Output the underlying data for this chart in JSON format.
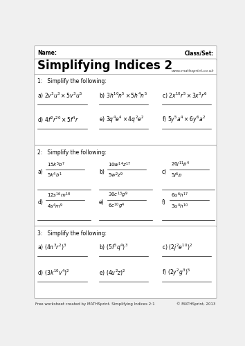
{
  "title": "Simplifying Indices 2",
  "website": "www.mathsprint.co.uk",
  "footer": "Free worksheet created by MATHSprint. Simplifying Indices 2:1",
  "footer_right": "© MATHSprint, 2013",
  "name_label": "Name:",
  "class_label": "Class/Set:",
  "section1_header": "1:   Simplify the following:",
  "section2_header": "2:   Simplify the following:",
  "section3_header": "3:   Simplify the following:",
  "bg_color": "#f0f0f0",
  "box_color": "#ffffff",
  "section1_row1": [
    "a) $2v^3u^3 \\times 5v^3u^5$",
    "b) $3h^{10}n^5 \\times 5h^4n^5$",
    "c) $2x^{10}r^5 \\times 3x^3r^6$"
  ],
  "section1_row2": [
    "d) $4f^2r^{20} \\times 5f^4r$",
    "e) $3q^4e^4 \\times 4q^2e^2$",
    "f) $5y^5a^4 \\times 6y^6a^2$"
  ],
  "section2_row1_labels": [
    "a)",
    "b)",
    "c)"
  ],
  "section2_row1_num": [
    "$15k^5b^7$",
    "$10w^{14}z^{17}$",
    "$20j^{11}p^4$"
  ],
  "section2_row1_den": [
    "$5k^4b^1$",
    "$5w^2z^9$",
    "$5j^6p$"
  ],
  "section2_row2_labels": [
    "d)",
    "e)",
    "f)"
  ],
  "section2_row2_num": [
    "$12s^{16}m^{18}$",
    "$30c^{13}g^9$",
    "$6u^6h^{17}$"
  ],
  "section2_row2_den": [
    "$4s^4m^9$",
    "$6c^{10}g^4$",
    "$3u^4h^{10}$"
  ],
  "section3_row1": [
    "a) $(4n^3r^2)^3$",
    "b) $(5f^5q^4)^3$",
    "c) $(2j^2e^{10})^2$"
  ],
  "section3_row2": [
    "d) $(3k^{10}v^4)^2$",
    "e) $(4u^2z)^2$",
    "f) $(2y^2g^3)^5$"
  ]
}
